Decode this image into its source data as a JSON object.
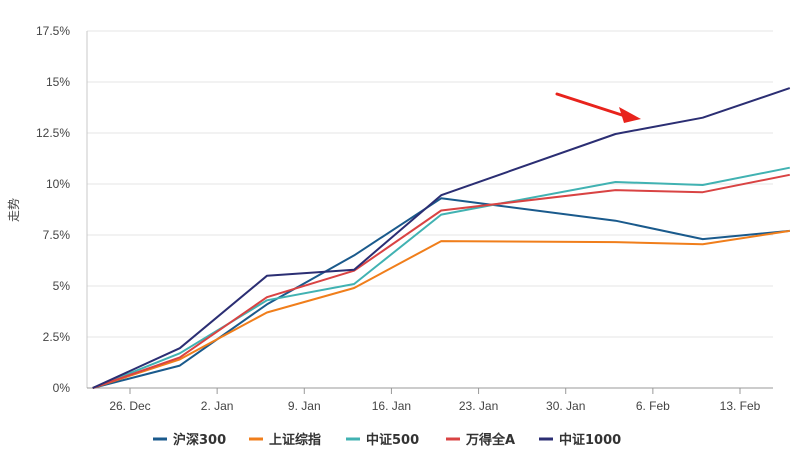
{
  "chart_data": {
    "type": "line",
    "title": "",
    "xlabel": "",
    "ylabel": "走势",
    "x_ticks": [
      "26. Dec",
      "2. Jan",
      "9. Jan",
      "16. Jan",
      "23. Jan",
      "30. Jan",
      "6. Feb",
      "13. Feb"
    ],
    "x_dates": [
      "2022-12-23",
      "2022-12-30",
      "2023-01-06",
      "2023-01-13",
      "2023-01-20",
      "2023-02-03",
      "2023-02-10",
      "2023-02-17"
    ],
    "y_ticks": [
      "0%",
      "2.5%",
      "5%",
      "7.5%",
      "10%",
      "12.5%",
      "15%",
      "17.5%"
    ],
    "ylim": [
      0,
      17.5
    ],
    "grid": true,
    "legend_position": "bottom",
    "series": [
      {
        "name": "沪深300",
        "color": "#1a5a8c",
        "values": [
          0,
          1.1,
          4.1,
          6.5,
          9.3,
          8.2,
          7.3,
          7.7
        ]
      },
      {
        "name": "上证综指",
        "color": "#f07e1b",
        "values": [
          0,
          1.4,
          3.7,
          4.9,
          7.2,
          7.15,
          7.05,
          7.7
        ]
      },
      {
        "name": "中证500",
        "color": "#41b2b2",
        "values": [
          0,
          1.7,
          4.3,
          5.1,
          8.5,
          10.1,
          9.95,
          10.8
        ]
      },
      {
        "name": "万得全A",
        "color": "#d94343",
        "values": [
          0,
          1.5,
          4.45,
          5.75,
          8.7,
          9.7,
          9.6,
          10.45
        ]
      },
      {
        "name": "中证1000",
        "color": "#2b2e73",
        "values": [
          0,
          1.95,
          5.5,
          5.8,
          9.45,
          12.45,
          13.25,
          14.7
        ]
      }
    ],
    "annotation": {
      "type": "arrow",
      "color": "#e8231c"
    }
  }
}
